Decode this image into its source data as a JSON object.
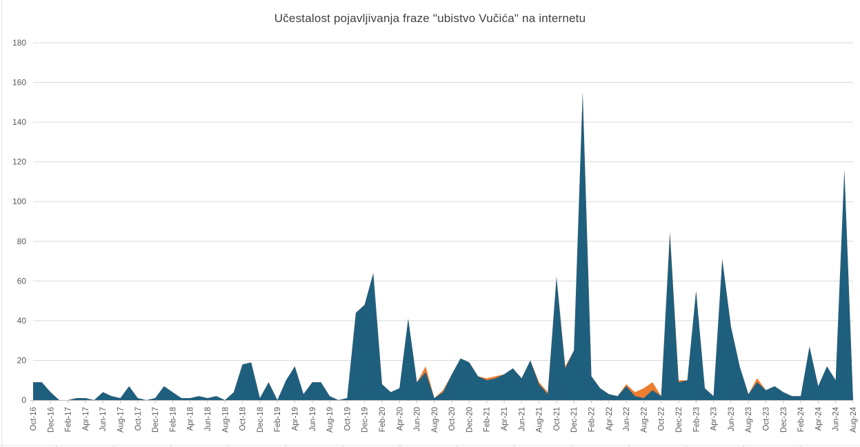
{
  "chart": {
    "title": "Učestalost pojavljivanja fraze \"ubistvo Vučića\" na internetu",
    "title_color": "#3f3f3f",
    "chart_data": {
      "type": "area",
      "stacked": true,
      "title": "Učestalost pojavljivanja fraze \"ubistvo Vučića\" na internetu",
      "xlabel": "",
      "ylabel": "",
      "ylim": [
        0,
        180
      ],
      "y_ticks": [
        0,
        20,
        40,
        60,
        80,
        100,
        120,
        140,
        160,
        180
      ],
      "x_label_interval": 2,
      "grid": true,
      "legend": "none",
      "gridline_color": "#d9d9d9",
      "axis_line_color": "#bfbfbf",
      "tick_color": "#bfbfbf",
      "axis_label_color": "#595959",
      "x": [
        "Oct-16",
        "Nov-16",
        "Dec-16",
        "Jan-17",
        "Feb-17",
        "Mar-17",
        "Apr-17",
        "May-17",
        "Jun-17",
        "Jul-17",
        "Aug-17",
        "Sep-17",
        "Oct-17",
        "Nov-17",
        "Dec-17",
        "Jan-18",
        "Feb-18",
        "Mar-18",
        "Apr-18",
        "May-18",
        "Jun-18",
        "Jul-18",
        "Aug-18",
        "Sep-18",
        "Oct-18",
        "Nov-18",
        "Dec-18",
        "Jan-19",
        "Feb-19",
        "Mar-19",
        "Apr-19",
        "May-19",
        "Jun-19",
        "Jul-19",
        "Aug-19",
        "Sep-19",
        "Oct-19",
        "Nov-19",
        "Dec-19",
        "Jan-20",
        "Feb-20",
        "Mar-20",
        "Apr-20",
        "May-20",
        "Jun-20",
        "Jul-20",
        "Aug-20",
        "Sep-20",
        "Oct-20",
        "Nov-20",
        "Dec-20",
        "Jan-21",
        "Feb-21",
        "Mar-21",
        "Apr-21",
        "May-21",
        "Jun-21",
        "Jul-21",
        "Aug-21",
        "Sep-21",
        "Oct-21",
        "Nov-21",
        "Dec-21",
        "Jan-22",
        "Feb-22",
        "Mar-22",
        "Apr-22",
        "May-22",
        "Jun-22",
        "Jul-22",
        "Aug-22",
        "Sep-22",
        "Oct-22",
        "Nov-22",
        "Dec-22",
        "Jan-23",
        "Feb-23",
        "Mar-23",
        "Apr-23",
        "May-23",
        "Jun-23",
        "Jul-23",
        "Aug-23",
        "Sep-23",
        "Oct-23",
        "Nov-23",
        "Dec-23",
        "Jan-24",
        "Feb-24",
        "Mar-24",
        "Apr-24",
        "May-24",
        "Jun-24",
        "Jul-24",
        "Aug-24"
      ],
      "series": [
        {
          "name": "series-teal",
          "color": "#1f5f7e",
          "values": [
            9,
            9,
            4,
            0,
            0,
            1,
            1,
            0,
            4,
            2,
            1,
            7,
            1,
            0,
            1,
            7,
            4,
            1,
            1,
            2,
            1,
            2,
            0,
            4,
            18,
            19,
            1,
            9,
            0,
            10,
            17,
            3,
            9,
            9,
            2,
            0,
            1,
            44,
            48,
            64,
            8,
            4,
            6,
            41,
            9,
            14,
            1,
            4,
            13,
            21,
            19,
            12,
            10,
            11,
            13,
            16,
            11,
            20,
            8,
            3,
            62,
            16,
            25,
            155,
            12,
            6,
            3,
            2,
            7,
            2,
            1,
            5,
            2,
            84,
            9,
            10,
            55,
            6,
            2,
            71,
            37,
            17,
            3,
            9,
            5,
            7,
            4,
            2,
            2,
            27,
            7,
            17,
            10,
            116,
            0
          ]
        },
        {
          "name": "series-orange",
          "color": "#ed7d31",
          "values": [
            0,
            0,
            0,
            0,
            0,
            0,
            0,
            0,
            0,
            0,
            0,
            0,
            0,
            0,
            0,
            0,
            0,
            0,
            0,
            0,
            0,
            0,
            0,
            0,
            0,
            0,
            0,
            0,
            0,
            0,
            0,
            0,
            0,
            0,
            0,
            0,
            0,
            0,
            0,
            0,
            0,
            0,
            0,
            0,
            0,
            3,
            0,
            1,
            0,
            0,
            0,
            0,
            1,
            1,
            0,
            0,
            0,
            0,
            1,
            1,
            0,
            1,
            0,
            0,
            0,
            0,
            0,
            0,
            1,
            2,
            5,
            4,
            0,
            1,
            1,
            0,
            0,
            0,
            0,
            0,
            0,
            0,
            0,
            2,
            0,
            0,
            0,
            0,
            0,
            0,
            0,
            0,
            0,
            0,
            0
          ]
        }
      ]
    }
  }
}
